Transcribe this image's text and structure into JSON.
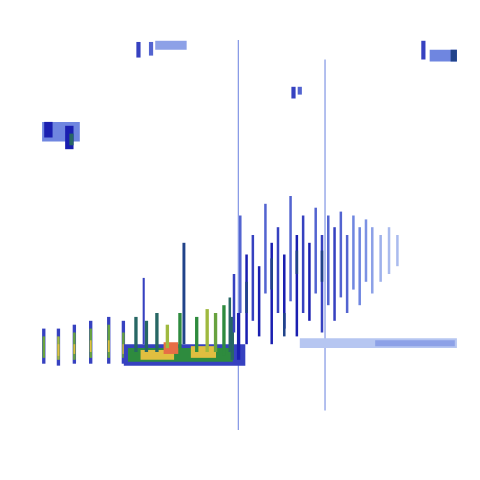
{
  "chart_data": {
    "type": "heatmap",
    "xlim": [
      0,
      100
    ],
    "ylim": [
      0,
      100
    ],
    "tick_labels": false,
    "color_range": [
      0,
      1
    ],
    "cells": [
      [
        47.2,
        47.45,
        0,
        100,
        0.3
      ],
      [
        67.9,
        68.15,
        5,
        95,
        0.3
      ],
      [
        0.5,
        1.3,
        17,
        26,
        0.4
      ],
      [
        0.6,
        1.2,
        18.5,
        24,
        0.65
      ],
      [
        4,
        4.8,
        16.5,
        26,
        0.4
      ],
      [
        4.1,
        4.7,
        18,
        24,
        0.7
      ],
      [
        4.2,
        4.6,
        19,
        22,
        0.8
      ],
      [
        7.8,
        8.6,
        17,
        27,
        0.4
      ],
      [
        7.9,
        8.5,
        18,
        25,
        0.65
      ],
      [
        8,
        8.4,
        19.5,
        22,
        0.8
      ],
      [
        11.7,
        12.5,
        17,
        28,
        0.4
      ],
      [
        11.8,
        12.4,
        18.5,
        26,
        0.65
      ],
      [
        11.9,
        12.3,
        20,
        23,
        0.8
      ],
      [
        16,
        16.8,
        17,
        29,
        0.4
      ],
      [
        16.1,
        16.7,
        18.5,
        27,
        0.65
      ],
      [
        16.2,
        16.6,
        20,
        23,
        0.8
      ],
      [
        19.5,
        20.3,
        17,
        28,
        0.4
      ],
      [
        19.6,
        20.2,
        18.5,
        25,
        0.65
      ],
      [
        19.7,
        20.1,
        19.5,
        22,
        0.8
      ],
      [
        20,
        49,
        16.5,
        22,
        0.4
      ],
      [
        21,
        46,
        17.5,
        21,
        0.6
      ],
      [
        24,
        32,
        18,
        20.5,
        0.8
      ],
      [
        29.5,
        33,
        19.5,
        22.5,
        0.95
      ],
      [
        36,
        42,
        18.5,
        21.5,
        0.8
      ],
      [
        22.5,
        23.3,
        20,
        29,
        0.55
      ],
      [
        25,
        25.8,
        20,
        28,
        0.55
      ],
      [
        27.5,
        28.3,
        20,
        30,
        0.55
      ],
      [
        30,
        30.8,
        21,
        27,
        0.7
      ],
      [
        33,
        33.8,
        21,
        30,
        0.6
      ],
      [
        34,
        34.7,
        22,
        48,
        0.5
      ],
      [
        24.5,
        25,
        22,
        39,
        0.4
      ],
      [
        37,
        37.8,
        20,
        29,
        0.6
      ],
      [
        39.5,
        40.3,
        20,
        31,
        0.7
      ],
      [
        41.5,
        42.3,
        20,
        30,
        0.65
      ],
      [
        43.5,
        44.3,
        19,
        32,
        0.6
      ],
      [
        45.5,
        46.3,
        18,
        29,
        0.55
      ],
      [
        47,
        47.8,
        18,
        30,
        0.45
      ],
      [
        45,
        45.6,
        20,
        34,
        0.55
      ],
      [
        62,
        99.5,
        21,
        23.5,
        0.18
      ],
      [
        80,
        99,
        21.5,
        23,
        0.25
      ],
      [
        46,
        46.6,
        25,
        40,
        0.4
      ],
      [
        47.5,
        48.1,
        30,
        55,
        0.35
      ],
      [
        49,
        49.6,
        22,
        45,
        0.45
      ],
      [
        50.5,
        51.1,
        28,
        50,
        0.4
      ],
      [
        52,
        52.6,
        24,
        42,
        0.45
      ],
      [
        53.5,
        54.1,
        35,
        58,
        0.35
      ],
      [
        55,
        55.6,
        22,
        48,
        0.45
      ],
      [
        56.5,
        57.1,
        30,
        52,
        0.4
      ],
      [
        58,
        58.6,
        26,
        45,
        0.45
      ],
      [
        59.5,
        60.1,
        33,
        60,
        0.35
      ],
      [
        61,
        61.6,
        24,
        50,
        0.45
      ],
      [
        62.5,
        63.1,
        30,
        55,
        0.4
      ],
      [
        64,
        64.6,
        28,
        48,
        0.45
      ],
      [
        65.5,
        66.1,
        35,
        57,
        0.35
      ],
      [
        67,
        67.6,
        25,
        50,
        0.4
      ],
      [
        68.5,
        69.1,
        32,
        55,
        0.35
      ],
      [
        70,
        70.6,
        28,
        52,
        0.4
      ],
      [
        71.5,
        72.1,
        34,
        56,
        0.35
      ],
      [
        73,
        73.6,
        30,
        50,
        0.35
      ],
      [
        74.5,
        75.1,
        36,
        55,
        0.3
      ],
      [
        76,
        76.6,
        32,
        52,
        0.3
      ],
      [
        77.5,
        78.1,
        38,
        54,
        0.28
      ],
      [
        79,
        79.6,
        35,
        52,
        0.25
      ],
      [
        81,
        81.6,
        38,
        50,
        0.22
      ],
      [
        83,
        83.6,
        40,
        52,
        0.2
      ],
      [
        85,
        85.6,
        42,
        50,
        0.2
      ],
      [
        49,
        49.6,
        30,
        38,
        0.5
      ],
      [
        55,
        55.6,
        36,
        44,
        0.5
      ],
      [
        61,
        61.6,
        40,
        46,
        0.5
      ],
      [
        67,
        67.6,
        38,
        46,
        0.5
      ],
      [
        58,
        58.6,
        24,
        30,
        0.5
      ],
      [
        0.5,
        9.5,
        74,
        79,
        0.3
      ],
      [
        1,
        3,
        75,
        79,
        0.45
      ],
      [
        6,
        8,
        72,
        78,
        0.45
      ],
      [
        7,
        8,
        73,
        76,
        0.55
      ],
      [
        23,
        24,
        95.5,
        99.5,
        0.4
      ],
      [
        26,
        27,
        96,
        99.5,
        0.35
      ],
      [
        27.5,
        35,
        97.5,
        99.8,
        0.25
      ],
      [
        60,
        61,
        85,
        88,
        0.4
      ],
      [
        61.5,
        62.5,
        86,
        88,
        0.35
      ],
      [
        91,
        92,
        95,
        99.8,
        0.4
      ],
      [
        93,
        99.5,
        94.5,
        97.5,
        0.3
      ],
      [
        98,
        99.5,
        94.5,
        97.5,
        0.5
      ]
    ]
  }
}
